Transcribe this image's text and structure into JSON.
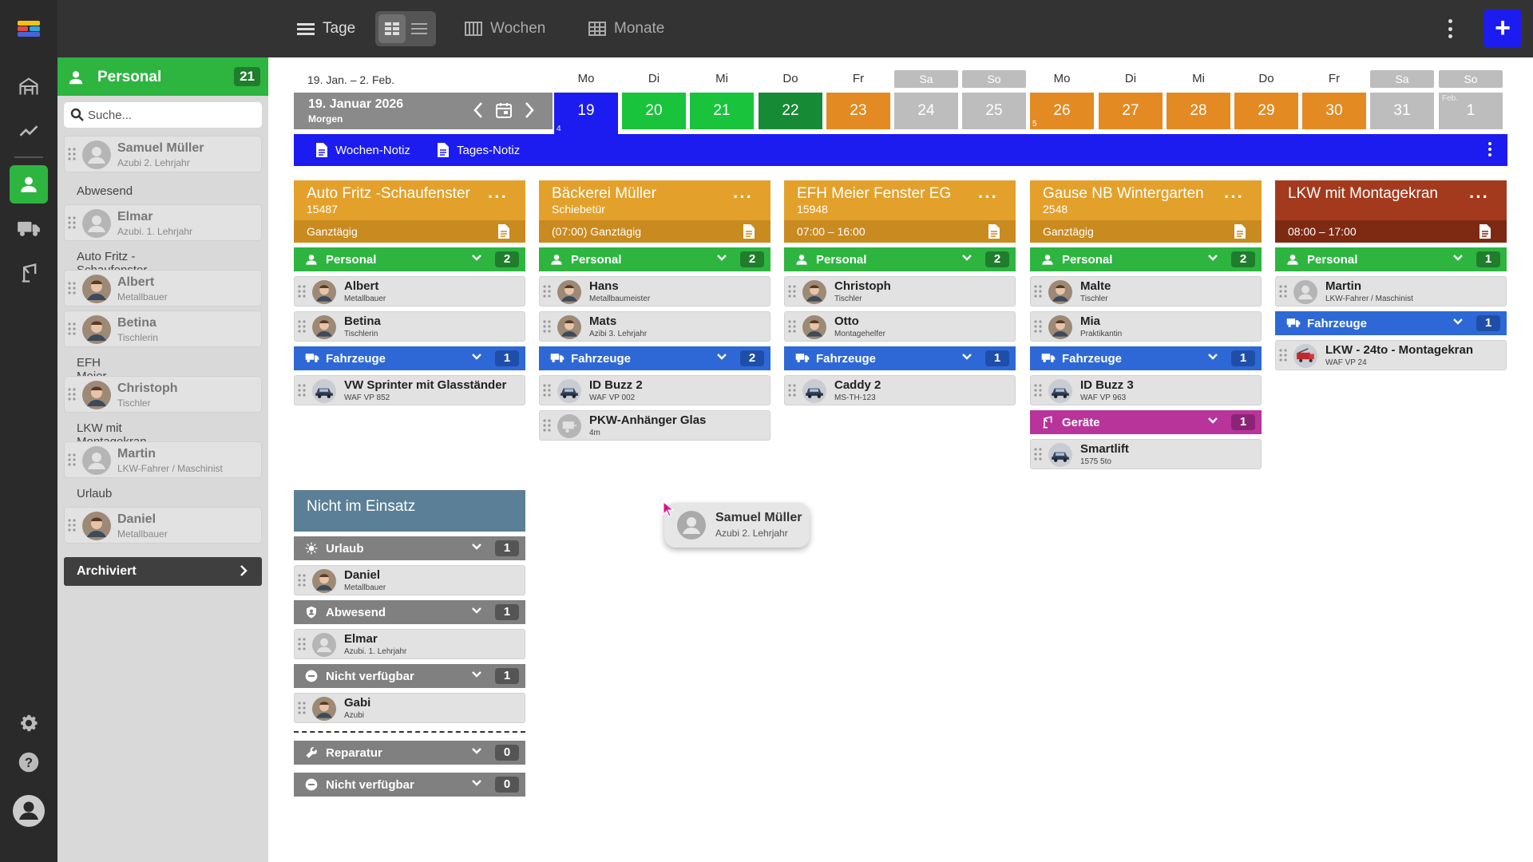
{
  "topbar": {
    "tage": "Tage",
    "wochen": "Wochen",
    "monate": "Monate",
    "add": "+"
  },
  "sidebar": {
    "title": "Personal",
    "count": "21",
    "search_placeholder": "Suche...",
    "groups": [
      {
        "label": "",
        "items": [
          {
            "name": "Samuel Müller",
            "role": "Azubi 2. Lehrjahr",
            "avatar": "placeholder"
          }
        ]
      },
      {
        "label": "Abwesend",
        "items": [
          {
            "name": "Elmar",
            "role": "Azubi. 1. Lehrjahr",
            "avatar": "placeholder"
          }
        ]
      },
      {
        "label": "Auto Fritz -Schaufenster",
        "items": [
          {
            "name": "Albert",
            "role": "Metallbauer",
            "avatar": "photo"
          },
          {
            "name": "Betina",
            "role": "Tischlerin",
            "avatar": "photo"
          }
        ]
      },
      {
        "label": "EFH Meier Fenster EG",
        "items": [
          {
            "name": "Christoph",
            "role": "Tischler",
            "avatar": "photo"
          }
        ]
      },
      {
        "label": "LKW mit Montagekran",
        "items": [
          {
            "name": "Martin",
            "role": "LKW-Fahrer / Maschinist",
            "avatar": "placeholder"
          }
        ]
      },
      {
        "label": "Urlaub",
        "items": [
          {
            "name": "Daniel",
            "role": "Metallbauer",
            "avatar": "photo"
          }
        ]
      }
    ],
    "archived": "Archiviert"
  },
  "calendar": {
    "range": "19. Jan. – 2. Feb.",
    "date_title": "19. Januar 2026",
    "date_sub": "Morgen",
    "days": [
      {
        "label": "Mo",
        "num": "19",
        "color": "#1c1cf0",
        "weekend": false,
        "selected": true,
        "week": "4",
        "month": ""
      },
      {
        "label": "Di",
        "num": "20",
        "color": "#19c43c",
        "weekend": false,
        "selected": false,
        "week": "",
        "month": ""
      },
      {
        "label": "Mi",
        "num": "21",
        "color": "#19c43c",
        "weekend": false,
        "selected": false,
        "week": "",
        "month": ""
      },
      {
        "label": "Do",
        "num": "22",
        "color": "#178a35",
        "weekend": false,
        "selected": false,
        "week": "",
        "month": ""
      },
      {
        "label": "Fr",
        "num": "23",
        "color": "#e38a22",
        "weekend": false,
        "selected": false,
        "week": "",
        "month": ""
      },
      {
        "label": "Sa",
        "num": "24",
        "color": "#bdbdbd",
        "weekend": true,
        "selected": false,
        "week": "",
        "month": ""
      },
      {
        "label": "So",
        "num": "25",
        "color": "#bdbdbd",
        "weekend": true,
        "selected": false,
        "week": "",
        "month": ""
      },
      {
        "label": "Mo",
        "num": "26",
        "color": "#e38a22",
        "weekend": false,
        "selected": false,
        "week": "5",
        "month": ""
      },
      {
        "label": "Di",
        "num": "27",
        "color": "#e38a22",
        "weekend": false,
        "selected": false,
        "week": "",
        "month": ""
      },
      {
        "label": "Mi",
        "num": "28",
        "color": "#e38a22",
        "weekend": false,
        "selected": false,
        "week": "",
        "month": ""
      },
      {
        "label": "Do",
        "num": "29",
        "color": "#e38a22",
        "weekend": false,
        "selected": false,
        "week": "",
        "month": ""
      },
      {
        "label": "Fr",
        "num": "30",
        "color": "#e38a22",
        "weekend": false,
        "selected": false,
        "week": "",
        "month": ""
      },
      {
        "label": "Sa",
        "num": "31",
        "color": "#bdbdbd",
        "weekend": true,
        "selected": false,
        "week": "",
        "month": ""
      },
      {
        "label": "So",
        "num": "1",
        "color": "#bdbdbd",
        "weekend": true,
        "selected": false,
        "week": "",
        "month": "Feb."
      }
    ],
    "week_note": "Wochen-Notiz",
    "day_note": "Tages-Notiz"
  },
  "projects": [
    {
      "title": "Auto Fritz -Schaufenster",
      "sub": "15487",
      "time": "Ganztägig",
      "head_color": "#e3a12b",
      "time_color": "#c98a1f",
      "sections": [
        {
          "type": "personal",
          "label": "Personal",
          "count": "2",
          "items": [
            {
              "name": "Albert",
              "role": "Metallbauer",
              "avatar": "photo"
            },
            {
              "name": "Betina",
              "role": "Tischlerin",
              "avatar": "photo"
            }
          ]
        },
        {
          "type": "vehicle",
          "label": "Fahrzeuge",
          "count": "1",
          "items": [
            {
              "name": "VW Sprinter mit Glasständer",
              "role": "WAF VP 852",
              "avatar": "vehicle"
            }
          ]
        }
      ]
    },
    {
      "title": "Bäckerei Müller",
      "sub": "Schiebetür",
      "time": "(07:00)  Ganztägig",
      "head_color": "#e3a12b",
      "time_color": "#c98a1f",
      "sections": [
        {
          "type": "personal",
          "label": "Personal",
          "count": "2",
          "items": [
            {
              "name": "Hans",
              "role": "Metallbaumeister",
              "avatar": "photo"
            },
            {
              "name": "Mats",
              "role": "Azibi 3. Lehrjahr",
              "avatar": "photo"
            }
          ]
        },
        {
          "type": "vehicle",
          "label": "Fahrzeuge",
          "count": "2",
          "items": [
            {
              "name": "ID Buzz 2",
              "role": "WAF VP 002",
              "avatar": "vehicle"
            },
            {
              "name": "PKW-Anhänger Glas",
              "role": "4m",
              "avatar": "trailer"
            }
          ]
        }
      ]
    },
    {
      "title": "EFH Meier Fenster EG",
      "sub": "15948",
      "time": "07:00 – 16:00",
      "head_color": "#e3a12b",
      "time_color": "#c98a1f",
      "sections": [
        {
          "type": "personal",
          "label": "Personal",
          "count": "2",
          "items": [
            {
              "name": "Christoph",
              "role": "Tischler",
              "avatar": "photo"
            },
            {
              "name": "Otto",
              "role": "Montagehelfer",
              "avatar": "photo"
            }
          ]
        },
        {
          "type": "vehicle",
          "label": "Fahrzeuge",
          "count": "1",
          "items": [
            {
              "name": "Caddy 2",
              "role": "MS-TH-123",
              "avatar": "vehicle"
            }
          ]
        }
      ]
    },
    {
      "title": "Gause NB Wintergarten",
      "sub": "2548",
      "time": "Ganztägig",
      "head_color": "#e3a12b",
      "time_color": "#c98a1f",
      "sections": [
        {
          "type": "personal",
          "label": "Personal",
          "count": "2",
          "items": [
            {
              "name": "Malte",
              "role": "Tischler",
              "avatar": "photo"
            },
            {
              "name": "Mia",
              "role": "Praktikantin",
              "avatar": "photo"
            }
          ]
        },
        {
          "type": "vehicle",
          "label": "Fahrzeuge",
          "count": "1",
          "items": [
            {
              "name": "ID Buzz 3",
              "role": "WAF VP 963",
              "avatar": "vehicle"
            }
          ]
        },
        {
          "type": "equipment",
          "label": "Geräte",
          "count": "1",
          "items": [
            {
              "name": "Smartlift",
              "role": "1575 5to",
              "avatar": "vehicle"
            }
          ]
        }
      ]
    },
    {
      "title": "LKW mit Montagekran",
      "sub": "",
      "time": "08:00 – 17:00",
      "head_color": "#a33a1d",
      "time_color": "#7e2a13",
      "sections": [
        {
          "type": "personal",
          "label": "Personal",
          "count": "1",
          "items": [
            {
              "name": "Martin",
              "role": "LKW-Fahrer / Maschinist",
              "avatar": "placeholder"
            }
          ]
        },
        {
          "type": "vehicle",
          "label": "Fahrzeuge",
          "count": "1",
          "items": [
            {
              "name": "LKW - 24to - Montagekran",
              "role": "WAF VP 24",
              "avatar": "truck"
            }
          ]
        }
      ]
    }
  ],
  "not_in_use": {
    "title": "Nicht im Einsatz",
    "head_color": "#5a7f96",
    "sections": [
      {
        "type": "vacation",
        "label": "Urlaub",
        "count": "1",
        "items": [
          {
            "name": "Daniel",
            "role": "Metallbauer",
            "avatar": "photo"
          }
        ]
      },
      {
        "type": "absent",
        "label": "Abwesend",
        "count": "1",
        "items": [
          {
            "name": "Elmar",
            "role": "Azubi. 1. Lehrjahr",
            "avatar": "placeholder"
          }
        ]
      },
      {
        "type": "unavailable",
        "label": "Nicht verfügbar",
        "count": "1",
        "items": [
          {
            "name": "Gabi",
            "role": "Azubi",
            "avatar": "photo"
          }
        ]
      }
    ],
    "divider_sections": [
      {
        "type": "repair",
        "label": "Reparatur",
        "count": "0"
      },
      {
        "type": "unavailable",
        "label": "Nicht verfügbar",
        "count": "0"
      }
    ]
  },
  "drag_ghost": {
    "name": "Samuel Müller",
    "role": "Azubi 2. Lehrjahr"
  },
  "colors": {
    "personal": "#2db540",
    "personal_count": "#1f7d2c",
    "vehicle": "#2e68d6",
    "vehicle_count": "#1f4ea8",
    "equipment": "#b8349a",
    "equipment_count": "#8c2475",
    "grey_section": "#808080",
    "grey_count": "#555555"
  }
}
